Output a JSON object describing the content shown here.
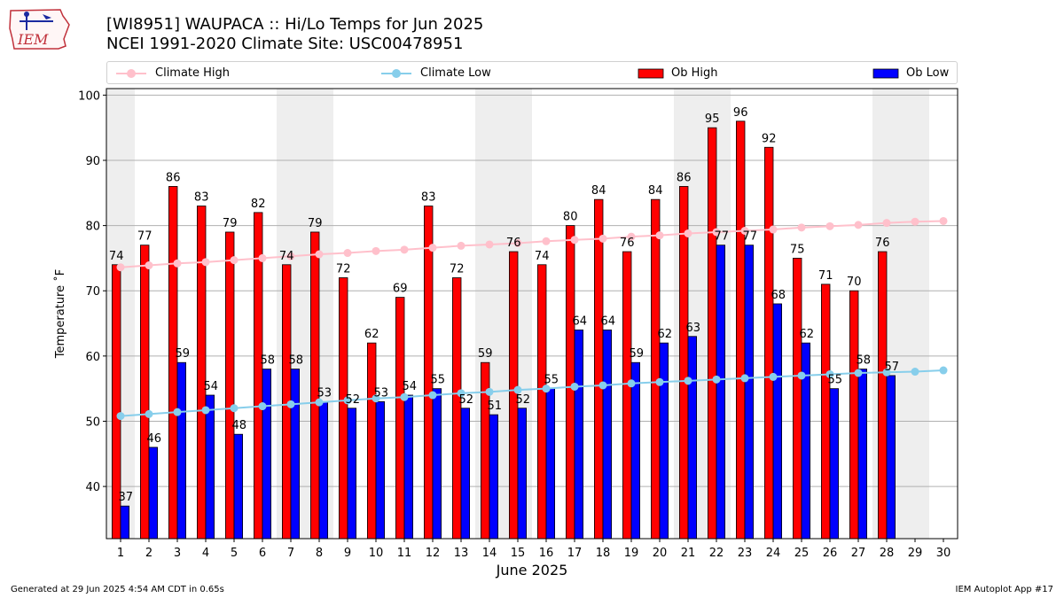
{
  "logo": {
    "text": "IEM"
  },
  "header": {
    "title_line1": "[WI8951] WAUPACA :: Hi/Lo Temps for Jun 2025",
    "title_line2": "NCEI 1991-2020 Climate Site: USC00478951"
  },
  "legend": [
    {
      "label": "Climate High",
      "kind": "line",
      "color": "#ffc0cb"
    },
    {
      "label": "Climate Low",
      "kind": "line",
      "color": "#87ceeb"
    },
    {
      "label": "Ob High",
      "kind": "bar",
      "color": "#ff0000"
    },
    {
      "label": "Ob Low",
      "kind": "bar",
      "color": "#0000ff"
    }
  ],
  "footer": {
    "generated": "Generated at 29 Jun 2025 4:54 AM CDT in 0.65s",
    "app": "IEM Autoplot App #17"
  },
  "chart_data": {
    "type": "bar",
    "xlabel": "June 2025",
    "ylabel": "Temperature ˚F",
    "ylim": [
      32,
      101
    ],
    "yticks": [
      40,
      50,
      60,
      70,
      80,
      90,
      100
    ],
    "grid": "horizontal",
    "legend_position": "top",
    "days": [
      1,
      2,
      3,
      4,
      5,
      6,
      7,
      8,
      9,
      10,
      11,
      12,
      13,
      14,
      15,
      16,
      17,
      18,
      19,
      20,
      21,
      22,
      23,
      24,
      25,
      26,
      27,
      28,
      29,
      30
    ],
    "weekend_days": [
      1,
      7,
      8,
      14,
      15,
      21,
      22,
      28,
      29
    ],
    "series": [
      {
        "name": "Ob High",
        "kind": "bar",
        "color": "#ff0000",
        "values": [
          74,
          77,
          86,
          83,
          79,
          82,
          74,
          79,
          72,
          62,
          69,
          83,
          72,
          59,
          76,
          74,
          80,
          84,
          76,
          84,
          86,
          95,
          96,
          92,
          75,
          71,
          70,
          76
        ]
      },
      {
        "name": "Ob Low",
        "kind": "bar",
        "color": "#0000ff",
        "values": [
          37,
          46,
          59,
          54,
          48,
          58,
          58,
          53,
          52,
          53,
          54,
          55,
          52,
          51,
          52,
          55,
          64,
          64,
          59,
          62,
          63,
          77,
          77,
          68,
          62,
          55,
          58,
          57
        ]
      },
      {
        "name": "Climate High",
        "kind": "line",
        "color": "#ffc0cb",
        "values": [
          73.6,
          73.9,
          74.2,
          74.4,
          74.7,
          75.0,
          75.3,
          75.6,
          75.8,
          76.1,
          76.3,
          76.6,
          76.9,
          77.1,
          77.3,
          77.6,
          77.8,
          78.0,
          78.3,
          78.5,
          78.8,
          79.0,
          79.2,
          79.4,
          79.7,
          79.9,
          80.1,
          80.4,
          80.6,
          80.7
        ]
      },
      {
        "name": "Climate Low",
        "kind": "line",
        "color": "#87ceeb",
        "values": [
          50.8,
          51.1,
          51.4,
          51.7,
          52.0,
          52.3,
          52.6,
          52.9,
          53.2,
          53.5,
          53.7,
          54.0,
          54.3,
          54.5,
          54.8,
          55.0,
          55.3,
          55.5,
          55.8,
          56.0,
          56.2,
          56.4,
          56.6,
          56.8,
          57.0,
          57.2,
          57.4,
          57.5,
          57.6,
          57.8
        ]
      }
    ]
  }
}
